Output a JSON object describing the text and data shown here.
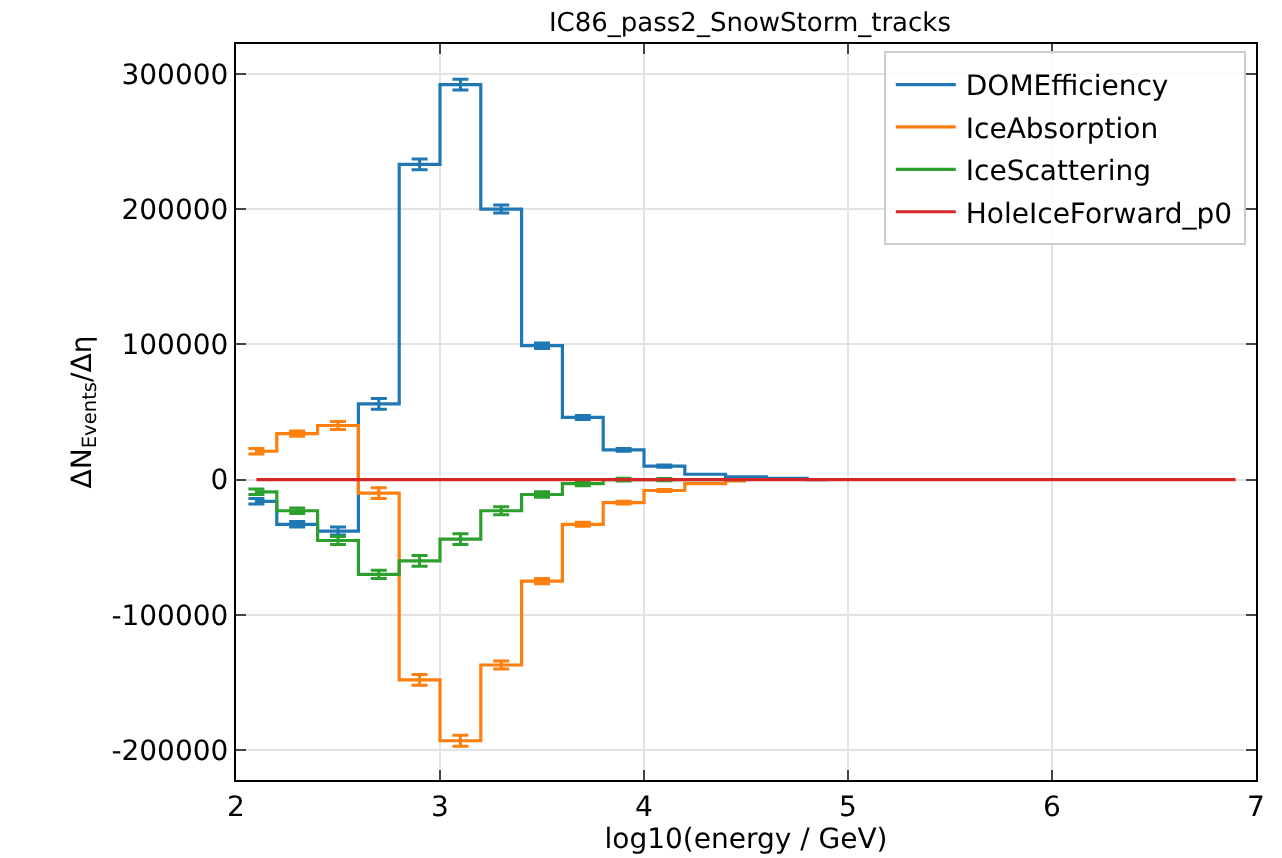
{
  "chart_data": {
    "type": "step",
    "title": "IC86_pass2_SnowStorm_tracks",
    "xlabel": "log10(energy / GeV)",
    "ylabel": "ΔN$_{Events}$/Δη",
    "x": [
      2.1,
      2.3,
      2.5,
      2.7,
      2.9,
      3.1,
      3.3,
      3.5,
      3.7,
      3.9,
      4.1,
      4.3,
      4.5,
      4.7,
      4.9,
      5.1,
      5.3,
      5.5,
      5.7,
      5.9,
      6.1,
      6.3,
      6.5,
      6.7,
      6.9
    ],
    "series": [
      {
        "name": "DOMEfficiency",
        "color": "#1f77b4",
        "values": [
          -16000,
          -33000,
          -38000,
          56000,
          233000,
          292000,
          200000,
          99000,
          46000,
          22000,
          10000,
          4000,
          2000,
          1000,
          0,
          null,
          null,
          null,
          null,
          null,
          null,
          null,
          null,
          null,
          null
        ],
        "errors": [
          2000,
          2000,
          3000,
          4000,
          4000,
          4000,
          3000,
          2000,
          1500,
          1000,
          800,
          null,
          null,
          null,
          null,
          null,
          null,
          null,
          null,
          null,
          null,
          null,
          null,
          null,
          null
        ]
      },
      {
        "name": "IceAbsorption",
        "color": "#ff7f0e",
        "values": [
          21000,
          34000,
          40000,
          -10000,
          -148000,
          -193000,
          -137000,
          -75000,
          -33000,
          -17000,
          -8000,
          -3000,
          -1000,
          null,
          null,
          null,
          null,
          null,
          null,
          null,
          null,
          null,
          null,
          null,
          null
        ],
        "errors": [
          2000,
          2000,
          3000,
          4000,
          4000,
          4000,
          3000,
          2000,
          1500,
          1000,
          800,
          null,
          null,
          null,
          null,
          null,
          null,
          null,
          null,
          null,
          null,
          null,
          null,
          null,
          null
        ]
      },
      {
        "name": "IceScattering",
        "color": "#2ca02c",
        "values": [
          -9000,
          -23000,
          -45000,
          -70000,
          -60000,
          -44000,
          -23000,
          -11000,
          -3000,
          0,
          0,
          0,
          0,
          null,
          null,
          null,
          null,
          null,
          null,
          null,
          null,
          null,
          null,
          null,
          null
        ],
        "errors": [
          2000,
          2000,
          3000,
          3000,
          4000,
          4000,
          3000,
          2000,
          1500,
          1000,
          800,
          null,
          null,
          null,
          null,
          null,
          null,
          null,
          null,
          null,
          null,
          null,
          null,
          null,
          null
        ]
      },
      {
        "name": "HoleIceForward_p0",
        "color": "#d62728",
        "values": [
          0,
          0,
          0,
          0,
          0,
          0,
          0,
          0,
          0,
          0,
          0,
          0,
          0,
          0,
          0,
          0,
          0,
          0,
          0,
          0,
          0,
          0,
          0,
          0,
          0
        ]
      }
    ],
    "xlim": [
      2,
      7
    ],
    "xticks": [
      2,
      3,
      4,
      5,
      6,
      7
    ],
    "ylim": [
      -222000,
      322000
    ],
    "yticks": [
      -200000,
      -100000,
      0,
      100000,
      200000,
      300000
    ],
    "grid": true,
    "legend": "top right",
    "marker": "none",
    "line_style": "solid"
  }
}
